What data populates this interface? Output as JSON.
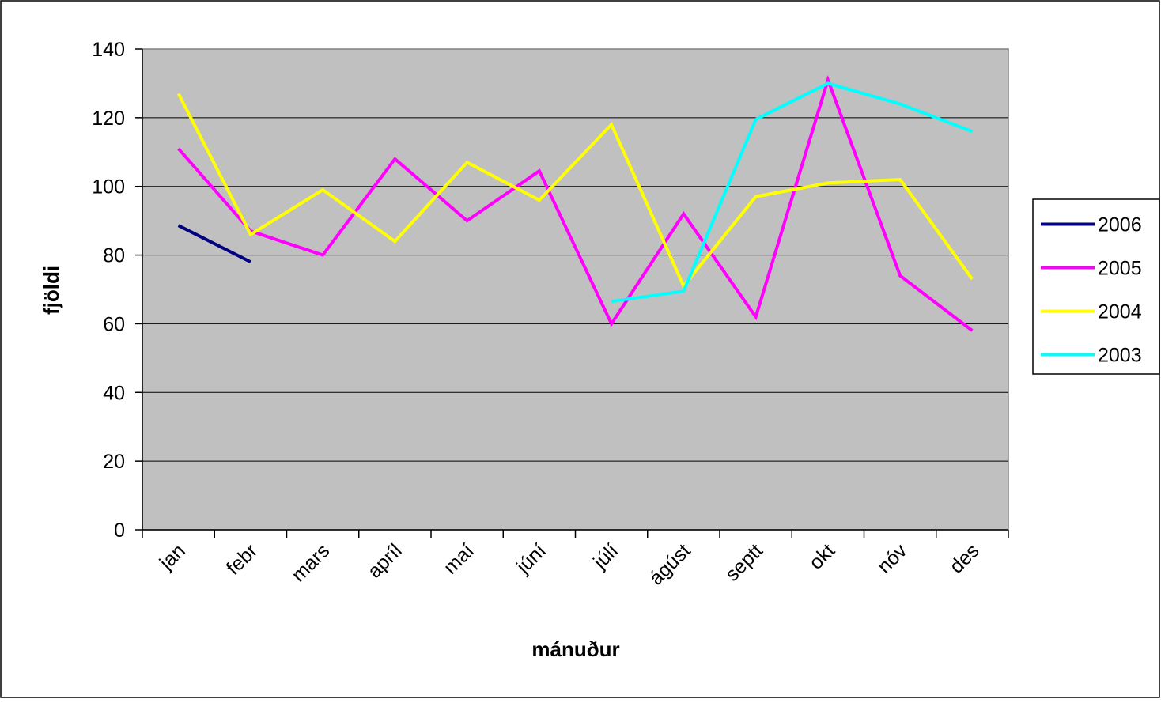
{
  "chart_data": {
    "type": "line",
    "xlabel": "mánuður",
    "ylabel": "fjöldi",
    "categories": [
      "jan",
      "febr",
      "mars",
      "apríl",
      "maí",
      "júní",
      "júlí",
      "ágúst",
      "septt",
      "okt",
      "nóv",
      "des"
    ],
    "series": [
      {
        "name": "2006",
        "color": "#000080",
        "values": [
          88.6,
          78,
          null,
          null,
          null,
          null,
          null,
          null,
          null,
          null,
          null,
          null
        ]
      },
      {
        "name": "2005",
        "color": "#ff00ff",
        "values": [
          111,
          87,
          80,
          108,
          90,
          104.5,
          60,
          92,
          62,
          131,
          74,
          58
        ]
      },
      {
        "name": "2004",
        "color": "#ffff00",
        "values": [
          127,
          86,
          99,
          84,
          107,
          96,
          118,
          71,
          97,
          101,
          102,
          73
        ]
      },
      {
        "name": "2003",
        "color": "#00ffff",
        "values": [
          null,
          null,
          null,
          null,
          null,
          null,
          66.5,
          69.5,
          119.5,
          130,
          124,
          116
        ]
      }
    ],
    "ylim": [
      0,
      140
    ],
    "yticks": [
      0,
      20,
      40,
      60,
      80,
      100,
      120,
      140
    ],
    "grid": true,
    "legend": "right",
    "plot_background": "#c0c0c0"
  }
}
